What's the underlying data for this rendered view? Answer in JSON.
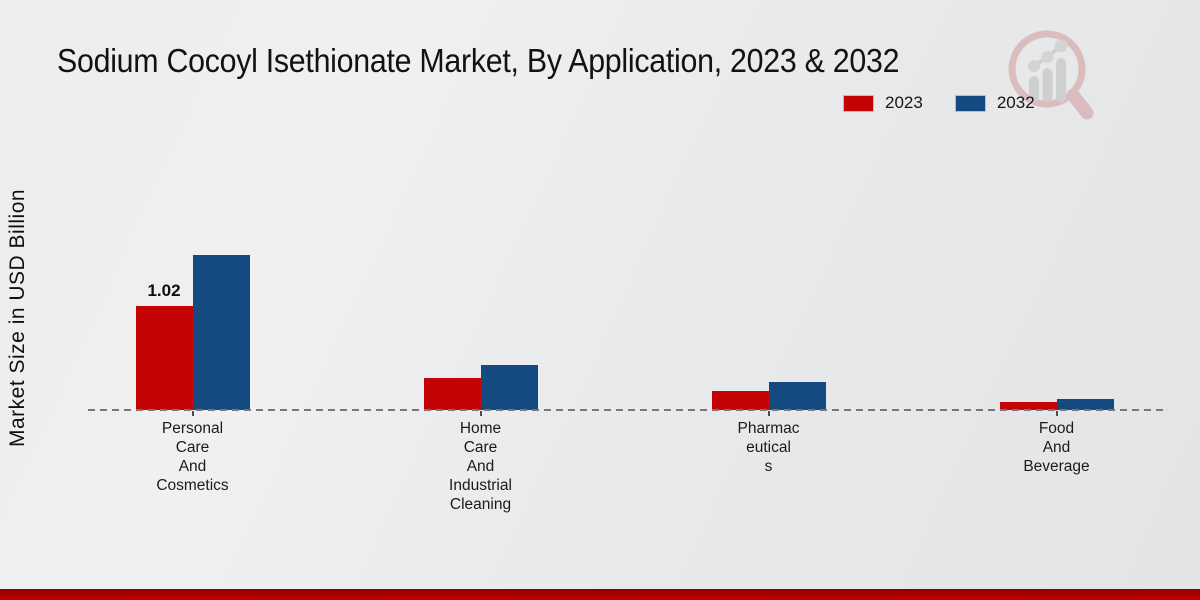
{
  "title": "Sodium Cocoyl Isethionate Market, By Application, 2023 & 2032",
  "y_axis_label": "Market Size in USD Billion",
  "legend": [
    {
      "label": "2023",
      "color": "#c40404"
    },
    {
      "label": "2032",
      "color": "#154a80"
    }
  ],
  "watermark_icon": "bar-chart-magnifier-logo",
  "footer_band_color": "#b00000",
  "chart_data": {
    "type": "bar",
    "title": "Sodium Cocoyl Isethionate Market, By Application, 2023 & 2032",
    "xlabel": "",
    "ylabel": "Market Size in USD Billion",
    "legend_position": "top-right",
    "grid": false,
    "baseline_style": "dashed",
    "ylim": [
      0,
      1.75
    ],
    "categories": [
      "Personal Care And Cosmetics",
      "Home Care And Industrial Cleaning",
      "Pharmaceuticals",
      "Food And Beverage"
    ],
    "category_label_lines": [
      [
        "Personal",
        "Care",
        "And",
        "Cosmetics"
      ],
      [
        "Home",
        "Care",
        "And",
        "Industrial",
        "Cleaning"
      ],
      [
        "Pharmac",
        "eutical",
        "s"
      ],
      [
        "Food",
        "And",
        "Beverage"
      ]
    ],
    "series": [
      {
        "name": "2023",
        "color": "#c40404",
        "values": [
          1.02,
          0.31,
          0.19,
          0.08
        ]
      },
      {
        "name": "2032",
        "color": "#154a80",
        "values": [
          1.52,
          0.44,
          0.27,
          0.11
        ]
      }
    ],
    "data_labels": [
      {
        "series": "2023",
        "category_index": 0,
        "text": "1.02"
      }
    ]
  }
}
